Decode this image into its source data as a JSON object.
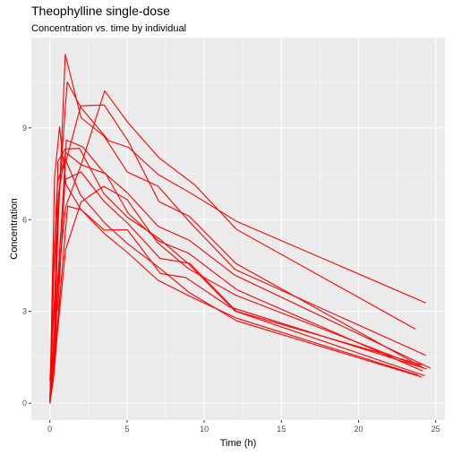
{
  "chart_data": {
    "type": "line",
    "title": "Theophylline single-dose",
    "subtitle": "Concentration vs. time by individual",
    "xlabel": "Time (h)",
    "ylabel": "Concentration",
    "xlim": [
      -1.2,
      25.6
    ],
    "ylim": [
      -0.55,
      11.95
    ],
    "x_ticks": [
      0,
      5,
      10,
      15,
      20,
      25
    ],
    "y_ticks": [
      0,
      3,
      6,
      9
    ],
    "grid": true,
    "line_color": "#ff0000",
    "panel_color": "#ebebeb",
    "series": [
      {
        "x": [
          0,
          0.25,
          0.57,
          1.12,
          2.02,
          3.82,
          5.1,
          7.03,
          9.05,
          12.12,
          24.37
        ],
        "y": [
          0.74,
          2.84,
          6.57,
          10.5,
          9.66,
          8.58,
          8.36,
          7.47,
          6.89,
          5.94,
          3.28
        ]
      },
      {
        "x": [
          0,
          0.27,
          0.52,
          1.0,
          1.92,
          3.5,
          5.02,
          7.03,
          9.0,
          12.0,
          24.3
        ],
        "y": [
          0,
          1.72,
          7.91,
          8.31,
          8.33,
          6.85,
          6.08,
          5.4,
          4.55,
          3.01,
          0.9
        ]
      },
      {
        "x": [
          0,
          0.27,
          0.58,
          1.02,
          2.02,
          3.62,
          5.08,
          7.07,
          9.0,
          12.15,
          24.17
        ],
        "y": [
          0,
          4.4,
          6.9,
          8.2,
          7.8,
          7.5,
          6.2,
          5.3,
          4.9,
          3.7,
          1.05
        ]
      },
      {
        "x": [
          0,
          0.35,
          0.6,
          1.07,
          2.13,
          3.5,
          5.02,
          7.02,
          9.02,
          11.98,
          24.65
        ],
        "y": [
          0,
          1.89,
          4.6,
          8.6,
          8.38,
          7.54,
          6.88,
          5.78,
          5.33,
          4.19,
          1.15
        ]
      },
      {
        "x": [
          0,
          0.3,
          0.52,
          1.0,
          2.02,
          3.5,
          5.02,
          7.02,
          9.1,
          12.0,
          24.35
        ],
        "y": [
          0,
          2.02,
          5.63,
          11.4,
          9.33,
          8.74,
          7.56,
          7.09,
          5.9,
          4.37,
          1.57
        ]
      },
      {
        "x": [
          0,
          0.27,
          0.58,
          1.15,
          2.03,
          3.57,
          5.0,
          7.0,
          9.22,
          12.1,
          23.85
        ],
        "y": [
          0,
          1.29,
          3.08,
          6.44,
          6.32,
          5.53,
          4.94,
          4.02,
          3.46,
          2.78,
          0.92
        ]
      },
      {
        "x": [
          0,
          0.25,
          0.5,
          1.02,
          2.02,
          3.48,
          5.0,
          6.98,
          9.0,
          12.05,
          24.22
        ],
        "y": [
          0,
          0.85,
          2.35,
          5.02,
          6.58,
          7.09,
          6.66,
          5.25,
          4.39,
          3.53,
          1.15
        ]
      },
      {
        "x": [
          0,
          0.25,
          0.52,
          0.98,
          2.02,
          3.53,
          5.05,
          7.15,
          9.07,
          12.1,
          24.12
        ],
        "y": [
          0,
          3.05,
          3.05,
          7.31,
          7.56,
          6.59,
          5.88,
          4.73,
          4.57,
          3.0,
          1.25
        ]
      },
      {
        "x": [
          0,
          0.3,
          0.63,
          1.05,
          2.02,
          3.53,
          5.02,
          7.17,
          8.8,
          11.6,
          24.43
        ],
        "y": [
          0,
          7.37,
          9.03,
          7.14,
          6.33,
          5.66,
          5.67,
          4.24,
          4.11,
          3.16,
          1.12
        ]
      },
      {
        "x": [
          0,
          0.37,
          0.77,
          1.02,
          2.05,
          3.55,
          5.05,
          7.08,
          9.38,
          12.1,
          23.7
        ],
        "y": [
          0.24,
          2.89,
          5.22,
          6.41,
          7.83,
          10.21,
          9.18,
          8.02,
          7.14,
          5.68,
          2.42
        ]
      },
      {
        "x": [
          0,
          0.25,
          0.5,
          0.98,
          1.98,
          3.6,
          5.02,
          7.03,
          9.03,
          12.12,
          24.08
        ],
        "y": [
          0,
          4.86,
          7.24,
          8.0,
          6.81,
          5.87,
          5.22,
          4.45,
          3.62,
          2.69,
          0.86
        ]
      },
      {
        "x": [
          0,
          0.25,
          0.5,
          1.0,
          2.0,
          3.52,
          5.07,
          7.07,
          9.03,
          12.05,
          24.15
        ],
        "y": [
          0,
          1.25,
          3.96,
          7.82,
          9.72,
          9.75,
          8.57,
          6.59,
          6.11,
          4.57,
          1.17
        ]
      }
    ]
  }
}
